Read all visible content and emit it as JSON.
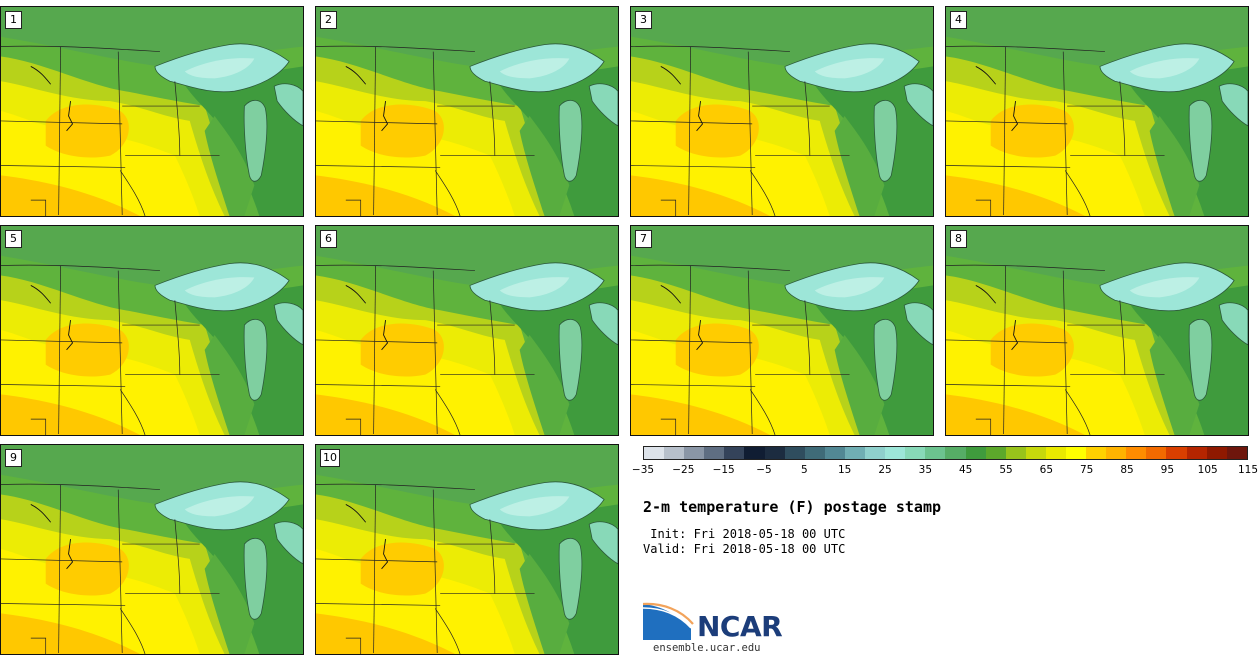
{
  "product": {
    "title": "2-m temperature (F) postage stamp",
    "init_line": " Init: Fri 2018-05-18 00 UTC",
    "valid_line": "Valid: Fri 2018-05-18 00 UTC"
  },
  "colorbar": {
    "tick_labels": [
      "−35",
      "−25",
      "−15",
      "−5",
      "5",
      "15",
      "25",
      "35",
      "45",
      "55",
      "65",
      "75",
      "85",
      "95",
      "105",
      "115"
    ],
    "colors": [
      "#dde3ea",
      "#b7c0cb",
      "#8a96a6",
      "#5f6e82",
      "#34435a",
      "#101d33",
      "#1c2c40",
      "#2f4d5e",
      "#3f6b78",
      "#528894",
      "#70aeb3",
      "#8fd0cc",
      "#9de6d8",
      "#88d9b8",
      "#6cc38f",
      "#56ad66",
      "#3f9b3d",
      "#5ca82b",
      "#98c31b",
      "#c6d80c",
      "#eaea00",
      "#ffff00",
      "#ffd100",
      "#ffb300",
      "#ff8c00",
      "#f26a00",
      "#d93f00",
      "#b52500",
      "#8f1900",
      "#6e160c"
    ]
  },
  "stamps": [
    {
      "label": "1"
    },
    {
      "label": "2"
    },
    {
      "label": "3"
    },
    {
      "label": "4"
    },
    {
      "label": "5"
    },
    {
      "label": "6"
    },
    {
      "label": "7"
    },
    {
      "label": "8"
    },
    {
      "label": "9"
    },
    {
      "label": "10"
    }
  ],
  "branding": {
    "logo_text": "NCAR",
    "url": "ensemble.ucar.edu"
  }
}
